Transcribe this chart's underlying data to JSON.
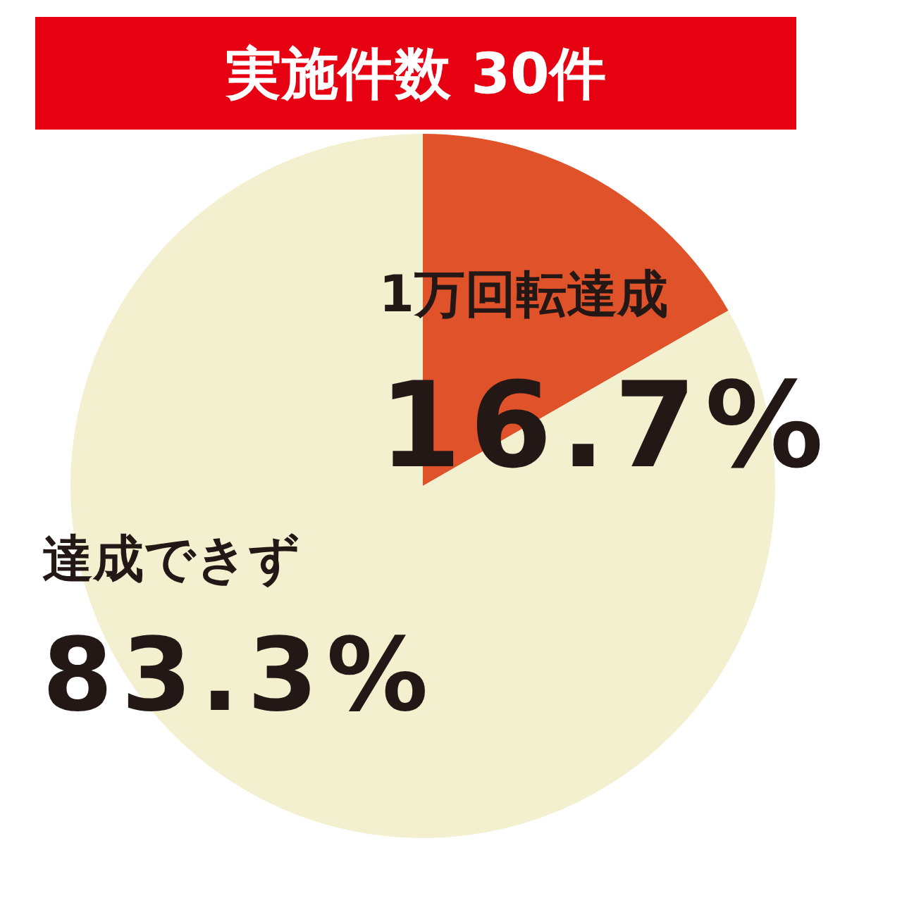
{
  "chart_data": {
    "type": "pie",
    "title": "実施件数 30件",
    "categories": [
      "1万回転達成",
      "達成できず"
    ],
    "values": [
      16.7,
      83.3
    ],
    "colors": [
      "#e0522a",
      "#f3f0cf"
    ],
    "value_labels": [
      "16.7%",
      "83.3%"
    ]
  }
}
